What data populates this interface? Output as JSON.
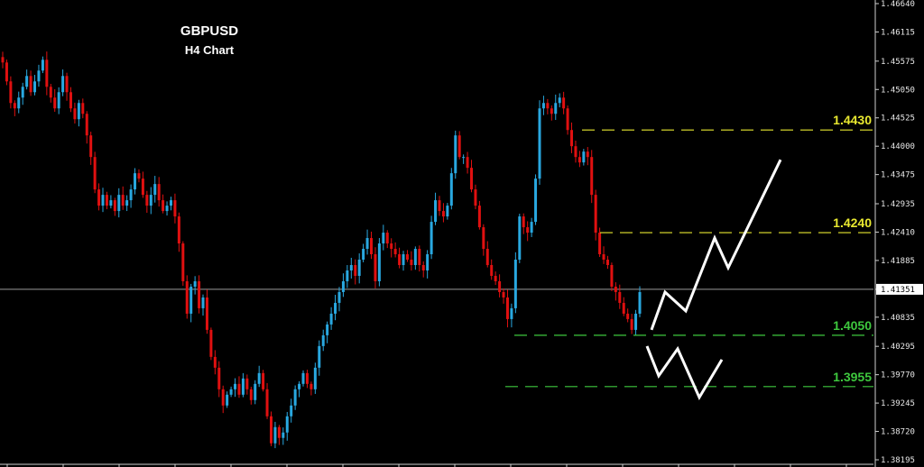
{
  "chart_data": {
    "type": "candlestick",
    "title": "GBPUSD",
    "subtitle": "H4 Chart",
    "ylim": [
      1.38195,
      1.4664
    ],
    "y_ticks": [
      "1.46640",
      "1.46115",
      "1.45575",
      "1.45050",
      "1.44525",
      "1.44000",
      "1.43475",
      "1.42935",
      "1.42410",
      "1.41885",
      "1.41351",
      "1.40835",
      "1.40295",
      "1.39770",
      "1.39245",
      "1.38720",
      "1.38195"
    ],
    "current_price": "1.41351",
    "colors": {
      "bull": "#29a8e0",
      "bear": "#e01010",
      "background": "#000000"
    },
    "levels": [
      {
        "label": "1.4430",
        "value": 1.443,
        "color": "#e8e830"
      },
      {
        "label": "1.4240",
        "value": 1.424,
        "color": "#e8e830"
      },
      {
        "label": "1.4050",
        "value": 1.405,
        "color": "#3ec83e"
      },
      {
        "label": "1.3955",
        "value": 1.3955,
        "color": "#3ec83e"
      }
    ],
    "closes": [
      1.4555,
      1.452,
      1.448,
      1.447,
      1.449,
      1.451,
      1.453,
      1.45,
      1.452,
      1.454,
      1.456,
      1.451,
      1.449,
      1.447,
      1.45,
      1.453,
      1.45,
      1.447,
      1.445,
      1.448,
      1.446,
      1.442,
      1.438,
      1.432,
      1.429,
      1.431,
      1.429,
      1.43,
      1.428,
      1.431,
      1.429,
      1.43,
      1.432,
      1.435,
      1.434,
      1.431,
      1.429,
      1.431,
      1.433,
      1.43,
      1.428,
      1.429,
      1.43,
      1.427,
      1.422,
      1.415,
      1.409,
      1.414,
      1.415,
      1.41,
      1.412,
      1.406,
      1.401,
      1.399,
      1.395,
      1.392,
      1.394,
      1.395,
      1.396,
      1.394,
      1.397,
      1.395,
      1.393,
      1.396,
      1.398,
      1.395,
      1.39,
      1.385,
      1.388,
      1.386,
      1.387,
      1.39,
      1.392,
      1.395,
      1.396,
      1.398,
      1.396,
      1.395,
      1.399,
      1.403,
      1.405,
      1.407,
      1.409,
      1.411,
      1.413,
      1.415,
      1.417,
      1.418,
      1.416,
      1.419,
      1.421,
      1.423,
      1.42,
      1.415,
      1.422,
      1.424,
      1.422,
      1.421,
      1.42,
      1.418,
      1.42,
      1.419,
      1.418,
      1.421,
      1.418,
      1.417,
      1.42,
      1.426,
      1.43,
      1.428,
      1.427,
      1.429,
      1.435,
      1.442,
      1.438,
      1.438,
      1.436,
      1.432,
      1.429,
      1.425,
      1.421,
      1.418,
      1.416,
      1.415,
      1.413,
      1.412,
      1.408,
      1.41,
      1.419,
      1.427,
      1.425,
      1.424,
      1.426,
      1.434,
      1.447,
      1.448,
      1.447,
      1.446,
      1.448,
      1.449,
      1.447,
      1.443,
      1.44,
      1.438,
      1.437,
      1.439,
      1.438,
      1.431,
      1.424,
      1.42,
      1.419,
      1.418,
      1.414,
      1.413,
      1.411,
      1.409,
      1.408,
      1.406,
      1.409,
      1.413
    ]
  }
}
